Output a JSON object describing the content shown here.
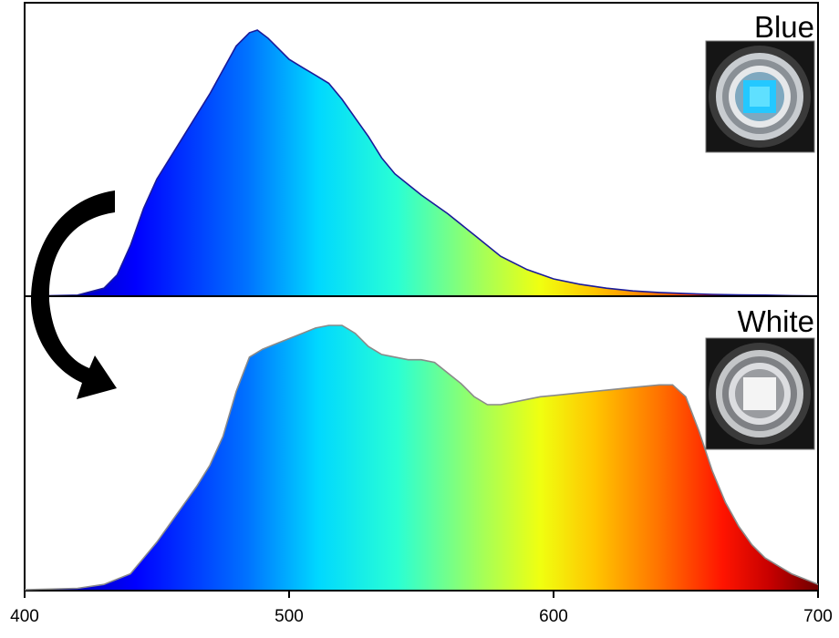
{
  "chart_data": {
    "type": "area",
    "xlim": [
      400,
      700
    ],
    "x_ticks": [
      "400",
      "500",
      "600",
      "700"
    ],
    "xlabel": "",
    "ylabel": "",
    "grid": false,
    "colormap": "spectral rainbow (blue to dark red by wavelength)",
    "panels": [
      {
        "label": "Blue",
        "inset": "photo of LED device emitting blue light",
        "ylim": [
          0,
          1.0
        ],
        "series": [
          {
            "x": [
              400,
              420,
              430,
              435,
              440,
              445,
              450,
              455,
              460,
              465,
              470,
              475,
              480,
              485,
              488,
              492,
              496,
              500,
              505,
              510,
              515,
              520,
              525,
              530,
              535,
              540,
              545,
              550,
              560,
              570,
              580,
              590,
              600,
              610,
              620,
              630,
              640,
              650,
              660,
              670,
              680,
              690,
              700
            ],
            "values": [
              0,
              0.004,
              0.03,
              0.08,
              0.19,
              0.33,
              0.44,
              0.52,
              0.6,
              0.68,
              0.76,
              0.85,
              0.94,
              0.99,
              1.0,
              0.97,
              0.93,
              0.89,
              0.86,
              0.83,
              0.8,
              0.74,
              0.67,
              0.6,
              0.52,
              0.46,
              0.42,
              0.38,
              0.31,
              0.23,
              0.15,
              0.1,
              0.065,
              0.045,
              0.03,
              0.02,
              0.014,
              0.01,
              0.007,
              0.005,
              0.004,
              0.002,
              0.001
            ]
          }
        ]
      },
      {
        "label": "White",
        "inset": "photo of LED device emitting white light",
        "ylim": [
          0,
          1.0
        ],
        "series": [
          {
            "x": [
              400,
              420,
              430,
              440,
              445,
              450,
              455,
              460,
              465,
              470,
              475,
              480,
              485,
              490,
              495,
              500,
              505,
              510,
              515,
              520,
              525,
              530,
              535,
              540,
              545,
              550,
              555,
              560,
              565,
              570,
              575,
              580,
              585,
              590,
              595,
              600,
              605,
              610,
              615,
              620,
              625,
              630,
              635,
              640,
              645,
              650,
              655,
              660,
              665,
              670,
              675,
              680,
              685,
              690,
              695,
              700
            ],
            "values": [
              0,
              0.005,
              0.02,
              0.06,
              0.12,
              0.18,
              0.25,
              0.32,
              0.39,
              0.47,
              0.58,
              0.75,
              0.88,
              0.91,
              0.93,
              0.95,
              0.97,
              0.99,
              1.0,
              1.0,
              0.97,
              0.92,
              0.89,
              0.88,
              0.87,
              0.87,
              0.86,
              0.82,
              0.78,
              0.73,
              0.7,
              0.7,
              0.71,
              0.72,
              0.73,
              0.735,
              0.74,
              0.745,
              0.75,
              0.755,
              0.76,
              0.765,
              0.77,
              0.775,
              0.775,
              0.73,
              0.6,
              0.45,
              0.33,
              0.24,
              0.17,
              0.12,
              0.09,
              0.06,
              0.04,
              0.02
            ]
          }
        ]
      }
    ],
    "annotation": "curved black arrow from top panel to bottom panel"
  }
}
